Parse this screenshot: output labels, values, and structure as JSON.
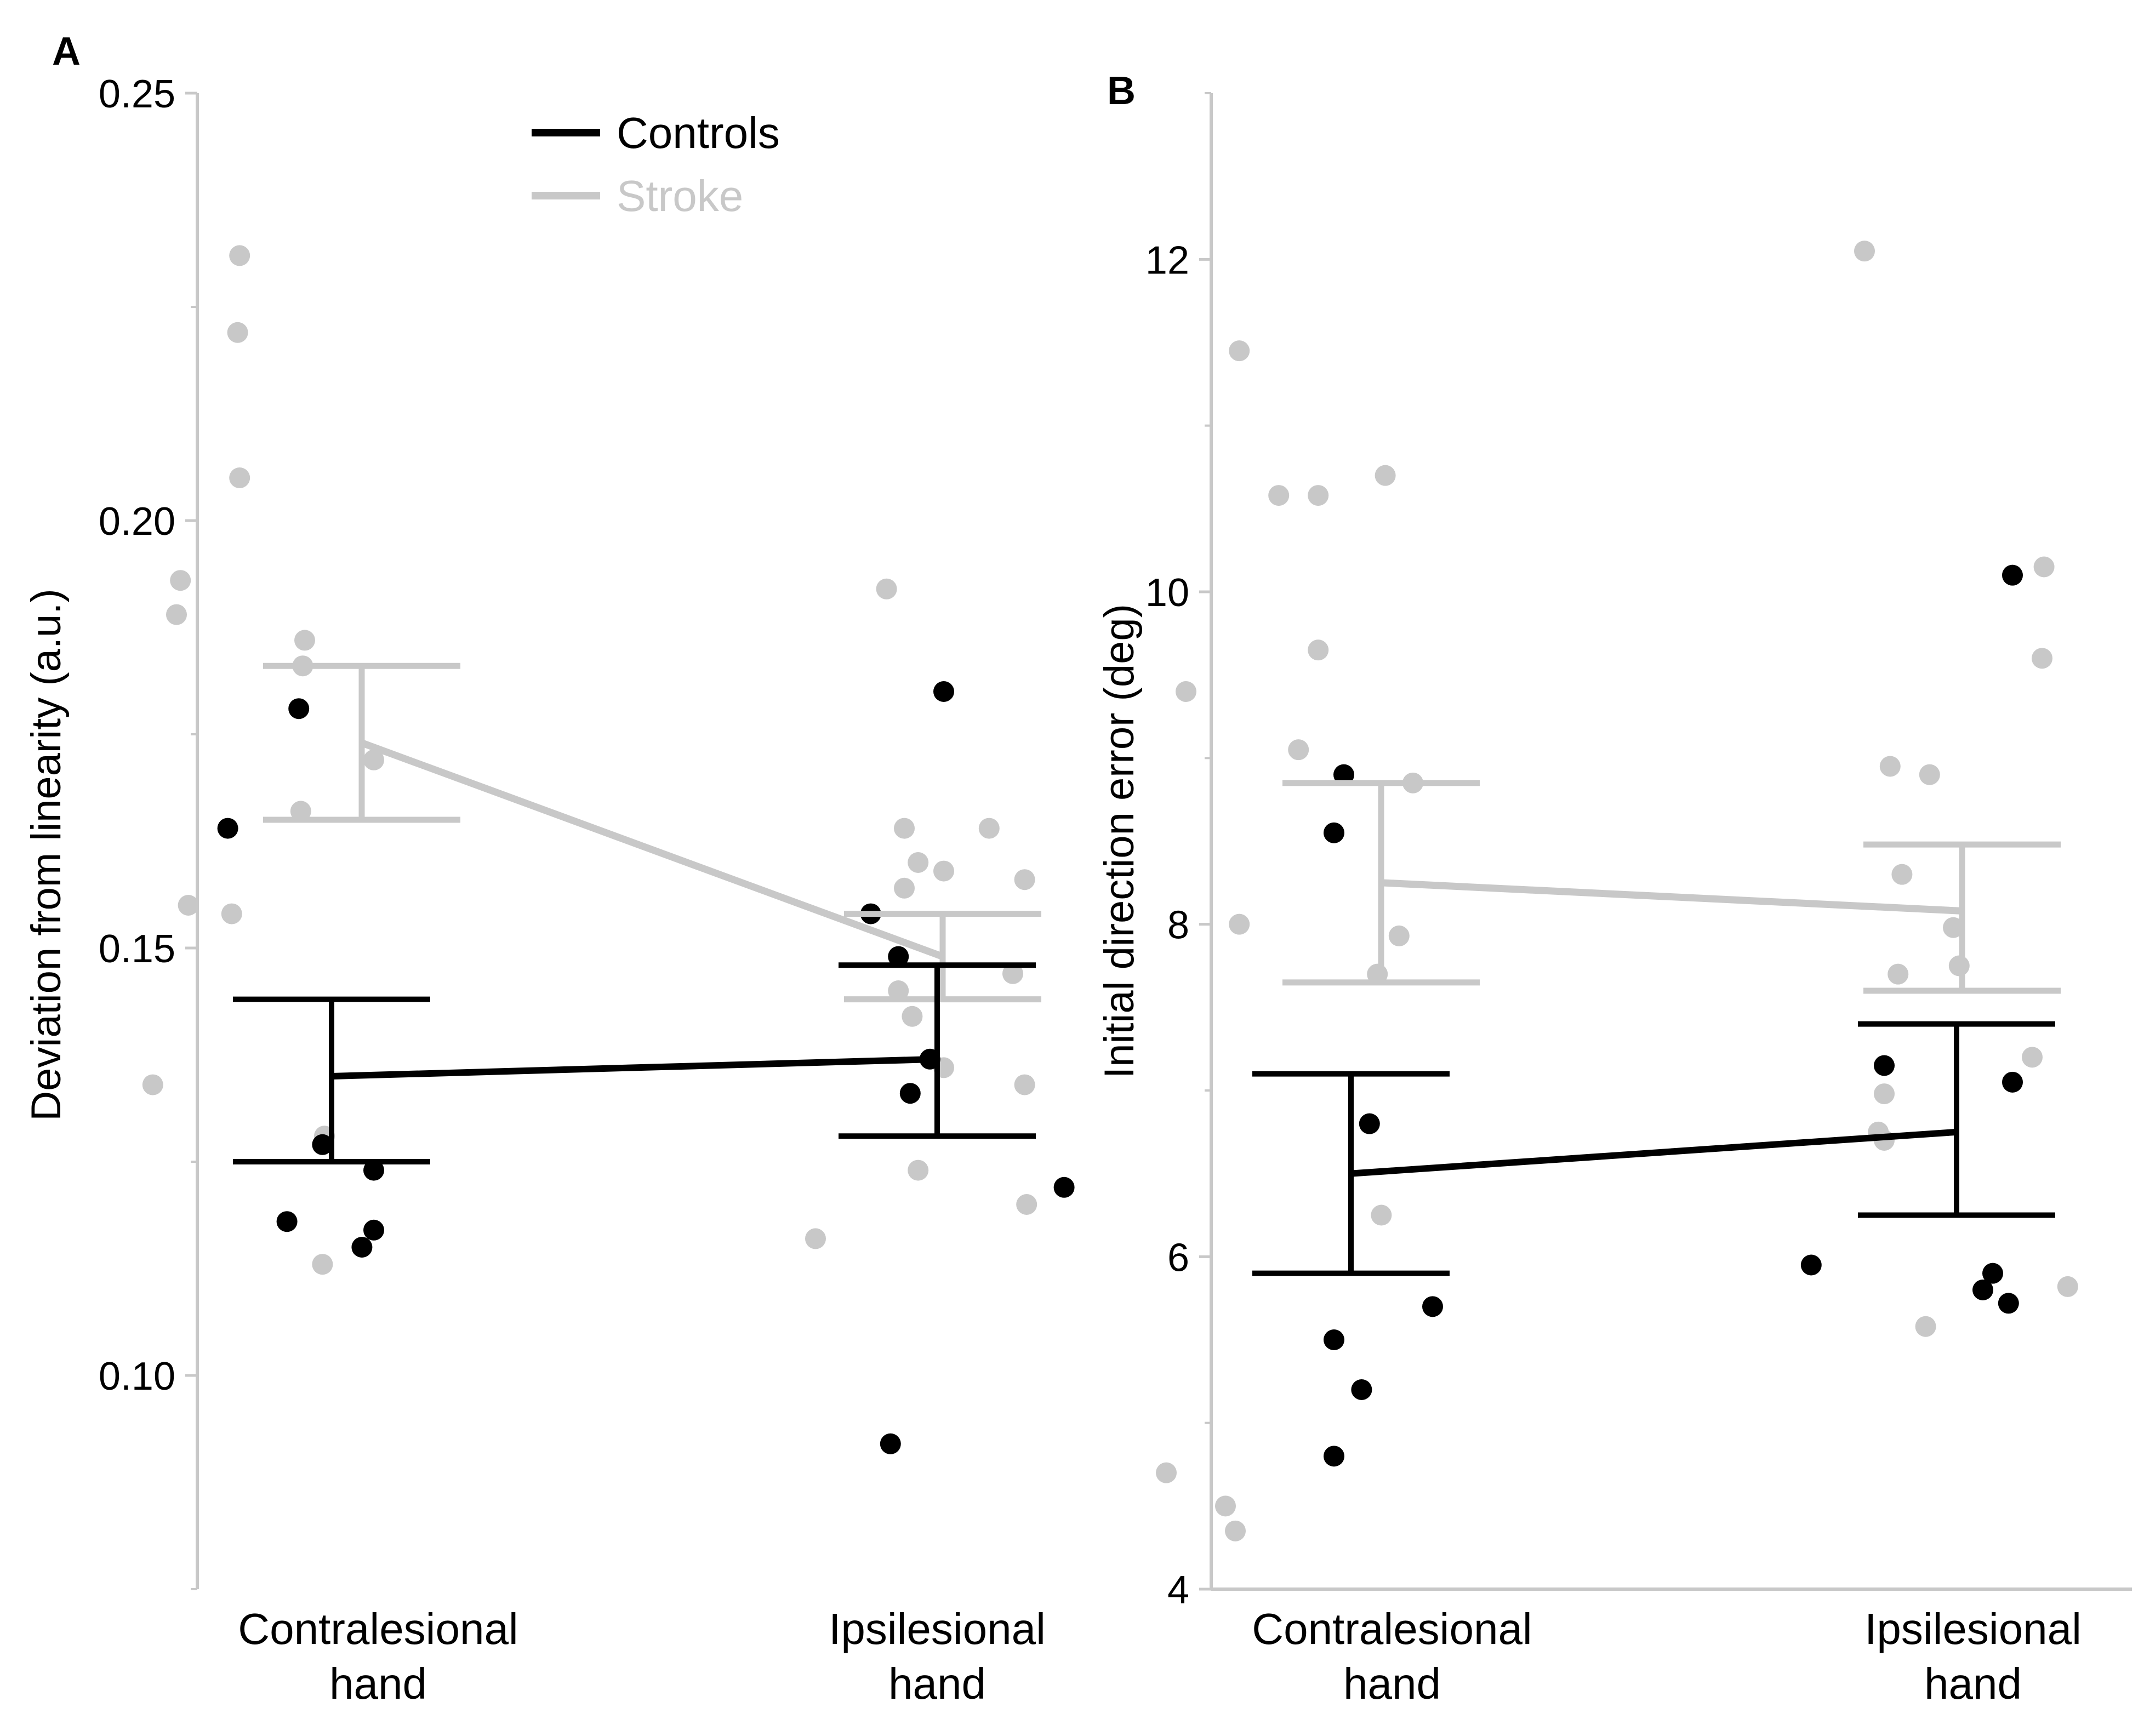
{
  "colors": {
    "controls": "#000000",
    "stroke": "#c8c8c8",
    "axis": "#c8c8c8"
  },
  "legend": {
    "controls_label": "Controls",
    "stroke_label": "Stroke",
    "position": "top-left of panel A"
  },
  "chart_data": [
    {
      "panel": "A",
      "type": "scatter",
      "ylabel": "Deviation from linearity (a.u.)",
      "ylim": [
        0.075,
        0.25
      ],
      "yticks": [
        0.1,
        0.15,
        0.2,
        0.25
      ],
      "ytick_labels": [
        "0.10",
        "0.15",
        "0.20",
        "0.25"
      ],
      "categories": [
        "Contralesional\nhand",
        "Ipsilesional\nhand"
      ],
      "series": [
        {
          "name": "Stroke",
          "means": [
            0.174,
            0.149
          ],
          "error_low": [
            0.165,
            0.144
          ],
          "error_high": [
            0.183,
            0.154
          ],
          "points": [
            [
              [
                -0.48,
                0.231
              ],
              [
                -0.49,
                0.222
              ],
              [
                -0.48,
                0.205
              ],
              [
                -0.78,
                0.193
              ],
              [
                -0.8,
                0.189
              ],
              [
                -0.15,
                0.186
              ],
              [
                -0.16,
                0.183
              ],
              [
                0.2,
                0.172
              ],
              [
                -0.17,
                0.166
              ],
              [
                -0.74,
                0.155
              ],
              [
                -0.52,
                0.154
              ],
              [
                -0.92,
                0.134
              ],
              [
                -0.05,
                0.128
              ],
              [
                -0.06,
                0.113
              ]
            ],
            [
              [
                -0.34,
                0.192
              ],
              [
                -0.25,
                0.164
              ],
              [
                0.18,
                0.164
              ],
              [
                -0.18,
                0.16
              ],
              [
                -0.05,
                0.159
              ],
              [
                -0.25,
                0.157
              ],
              [
                0.36,
                0.158
              ],
              [
                -0.28,
                0.145
              ],
              [
                0.3,
                0.147
              ],
              [
                -0.21,
                0.142
              ],
              [
                -0.05,
                0.136
              ],
              [
                0.36,
                0.134
              ],
              [
                -0.18,
                0.124
              ],
              [
                -0.7,
                0.116
              ],
              [
                0.37,
                0.12
              ]
            ]
          ]
        },
        {
          "name": "Controls",
          "means": [
            0.135,
            0.137
          ],
          "error_low": [
            0.125,
            0.128
          ],
          "error_high": [
            0.144,
            0.148
          ],
          "points": [
            [
              [
                -0.18,
                0.178
              ],
              [
                -0.54,
                0.164
              ],
              [
                -0.06,
                0.127
              ],
              [
                0.2,
                0.124
              ],
              [
                -0.24,
                0.118
              ],
              [
                0.2,
                0.117
              ],
              [
                0.14,
                0.115
              ]
            ],
            [
              [
                -0.42,
                0.154
              ],
              [
                -0.28,
                0.149
              ],
              [
                -0.05,
                0.18
              ],
              [
                -0.12,
                0.137
              ],
              [
                -0.22,
                0.133
              ],
              [
                0.56,
                0.122
              ],
              [
                -0.32,
                0.092
              ]
            ]
          ]
        }
      ]
    },
    {
      "panel": "B",
      "type": "scatter",
      "ylabel": "Initial direction error (deg)",
      "ylim": [
        4,
        13
      ],
      "yticks": [
        4,
        6,
        8,
        10,
        12
      ],
      "ytick_labels": [
        "4",
        "6",
        "8",
        "10",
        "12"
      ],
      "categories": [
        "Contralesional\nhand",
        "Ipsilesional\nhand"
      ],
      "series": [
        {
          "name": "Stroke",
          "means": [
            8.25,
            8.08
          ],
          "error_low": [
            7.65,
            7.6
          ],
          "error_high": [
            8.85,
            8.48
          ],
          "points": [
            [
              [
                -0.58,
                11.45
              ],
              [
                -0.38,
                10.58
              ],
              [
                -0.18,
                10.58
              ],
              [
                0.16,
                10.7
              ],
              [
                -0.18,
                9.65
              ],
              [
                -0.85,
                9.4
              ],
              [
                -0.28,
                9.05
              ],
              [
                0.3,
                8.85
              ],
              [
                -0.58,
                8.0
              ],
              [
                0.23,
                7.93
              ],
              [
                0.12,
                7.7
              ],
              [
                0.14,
                6.25
              ],
              [
                -0.95,
                4.7
              ],
              [
                -0.65,
                4.5
              ],
              [
                -0.6,
                4.35
              ]
            ],
            [
              [
                -0.55,
                12.05
              ],
              [
                0.36,
                10.15
              ],
              [
                0.35,
                9.6
              ],
              [
                -0.42,
                8.95
              ],
              [
                -0.22,
                8.9
              ],
              [
                -0.36,
                8.3
              ],
              [
                -0.1,
                7.98
              ],
              [
                -0.07,
                7.75
              ],
              [
                -0.38,
                7.7
              ],
              [
                0.3,
                7.2
              ],
              [
                -0.45,
                6.98
              ],
              [
                -0.48,
                6.75
              ],
              [
                -0.45,
                6.7
              ],
              [
                -0.24,
                5.58
              ],
              [
                0.48,
                5.82
              ]
            ]
          ]
        },
        {
          "name": "Controls",
          "means": [
            6.5,
            6.75
          ],
          "error_low": [
            5.9,
            6.25
          ],
          "error_high": [
            7.1,
            7.4
          ],
          "points": [
            [
              [
                -0.05,
                8.9
              ],
              [
                -0.1,
                8.55
              ],
              [
                0.08,
                6.8
              ],
              [
                0.4,
                5.7
              ],
              [
                -0.1,
                5.5
              ],
              [
                0.04,
                5.2
              ],
              [
                -0.1,
                4.8
              ]
            ],
            [
              [
                0.2,
                10.1
              ],
              [
                -0.45,
                7.15
              ],
              [
                0.2,
                7.05
              ],
              [
                -0.82,
                5.95
              ],
              [
                0.1,
                5.9
              ],
              [
                0.05,
                5.8
              ],
              [
                0.18,
                5.72
              ]
            ]
          ]
        }
      ]
    }
  ],
  "panels": {
    "A": {
      "letter": "A",
      "xtick_line1": [
        "Contralesional",
        "Ipsilesional"
      ],
      "xtick_line2": [
        "hand",
        "hand"
      ]
    },
    "B": {
      "letter": "B",
      "xtick_line1": [
        "Contralesional",
        "Ipsilesional"
      ],
      "xtick_line2": [
        "hand",
        "hand"
      ]
    }
  }
}
